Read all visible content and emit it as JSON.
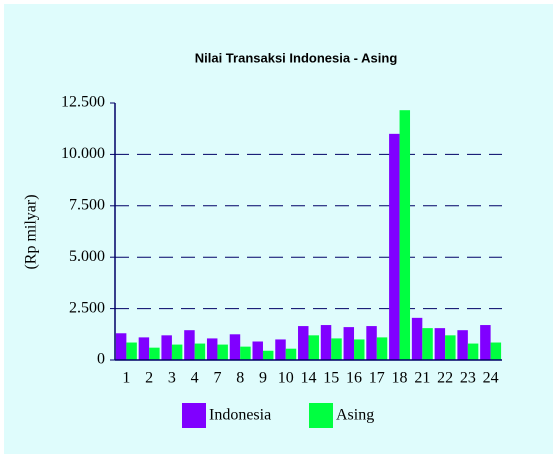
{
  "chart_data": {
    "type": "bar",
    "title": "Nilai Transaksi Indonesia - Asing",
    "ylabel": "(Rp milyar)",
    "categories": [
      "1",
      "2",
      "3",
      "4",
      "7",
      "8",
      "9",
      "10",
      "14",
      "15",
      "16",
      "17",
      "18",
      "21",
      "22",
      "23",
      "24"
    ],
    "series": [
      {
        "name": "Indonesia",
        "color": "#8000ff",
        "values": [
          1300,
          1100,
          1200,
          1450,
          1050,
          1250,
          900,
          1000,
          1650,
          1700,
          1600,
          1650,
          11000,
          2050,
          1550,
          1450,
          1700
        ]
      },
      {
        "name": "Asing",
        "color": "#00ff40",
        "values": [
          850,
          600,
          750,
          800,
          750,
          650,
          450,
          550,
          1200,
          1050,
          1000,
          1100,
          12150,
          1550,
          1200,
          800,
          850
        ]
      }
    ],
    "ylim": [
      0,
      12500
    ],
    "yticks": [
      0,
      {
        "value": 2500,
        "label": "2.500"
      },
      {
        "value": 5000,
        "label": "5.000"
      },
      {
        "value": 7500,
        "label": "7.500"
      },
      {
        "value": 10000,
        "label": "10.000"
      },
      {
        "value": 12500,
        "label": "12.500"
      }
    ],
    "grid": true,
    "legend": "bottom"
  }
}
